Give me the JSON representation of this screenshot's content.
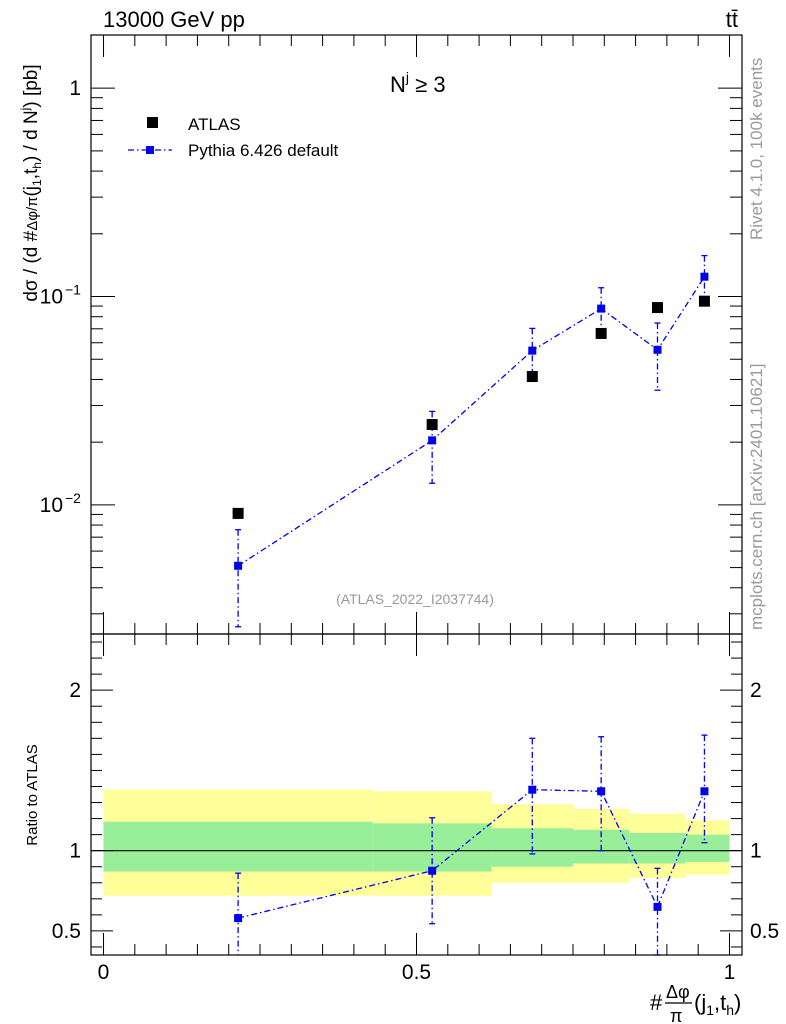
{
  "header": {
    "energy": "13000 GeV pp",
    "process": "tt̄"
  },
  "side": {
    "rivet": "Rivet 4.1.0,  100k events",
    "mcplots": "mcplots.cern.ch [arXiv:2401.10621]"
  },
  "colors": {
    "atlas": "#000000",
    "pythia": "#0000ee",
    "band_outer": "#ffff99",
    "band_inner": "#99ee99"
  },
  "chart_data": [
    {
      "type": "scatter",
      "title": "N^j ≥ 3",
      "analysis": "(ATLAS_2022_I2037744)",
      "ylabel": "dσ / (d #Δφ/π(j1,th) / d N^j) [pb]",
      "yscale": "log",
      "ylim": [
        0.0024,
        1.8
      ],
      "xlim": [
        -0.02,
        1.02
      ],
      "y_tick_labels": [
        "10^-2",
        "10^-1",
        "1"
      ],
      "legend": {
        "position": "top-left",
        "entries": [
          "ATLAS",
          "Pythia 6.426 default"
        ]
      },
      "series": [
        {
          "name": "ATLAS",
          "marker": "square",
          "x": [
            0.215,
            0.525,
            0.685,
            0.795,
            0.885,
            0.96
          ],
          "y": [
            0.0091,
            0.0243,
            0.0413,
            0.0665,
            0.0885,
            0.095
          ]
        },
        {
          "name": "Pythia 6.426 default",
          "marker": "square",
          "line": "dash-dot",
          "x": [
            0.215,
            0.525,
            0.685,
            0.795,
            0.885,
            0.96
          ],
          "y": [
            0.0051,
            0.0204,
            0.055,
            0.0875,
            0.0555,
            0.1245
          ],
          "y_err_low": [
            0.0025,
            0.0077,
            0.0117,
            0.0204,
            0.02,
            0.0311
          ],
          "y_err_high": [
            0.0025,
            0.0077,
            0.0153,
            0.0227,
            0.0191,
            0.0327
          ]
        }
      ]
    },
    {
      "type": "scatter",
      "title": "Ratio to ATLAS",
      "ylabel": "Ratio to ATLAS",
      "xlabel": "#Δφ/π(j1,th)",
      "ylim": [
        0.35,
        2.35
      ],
      "xlim": [
        -0.02,
        1.02
      ],
      "x_tick_labels": [
        "0",
        "0.5",
        "1"
      ],
      "y_tick_labels": [
        "0.5",
        "1",
        "2"
      ],
      "reference_line": 1,
      "bands": {
        "x_edges": [
          0,
          0.43,
          0.62,
          0.75,
          0.84,
          0.93,
          1.0
        ],
        "outer_low": [
          0.72,
          0.72,
          0.8,
          0.8,
          0.83,
          0.85
        ],
        "outer_high": [
          1.38,
          1.37,
          1.29,
          1.26,
          1.23,
          1.19
        ],
        "inner_low": [
          0.87,
          0.87,
          0.9,
          0.92,
          0.92,
          0.93
        ],
        "inner_high": [
          1.18,
          1.17,
          1.14,
          1.13,
          1.11,
          1.1
        ]
      },
      "series": [
        {
          "name": "Pythia 6.426 default",
          "marker": "square",
          "line": "dash-dot",
          "x": [
            0.215,
            0.525,
            0.685,
            0.795,
            0.885,
            0.96
          ],
          "y": [
            0.58,
            0.875,
            1.38,
            1.37,
            0.65,
            1.37
          ],
          "y_err_low": [
            0.28,
            0.33,
            0.4,
            0.37,
            0.3,
            0.32
          ],
          "y_err_high": [
            0.28,
            0.33,
            0.32,
            0.34,
            0.24,
            0.35
          ]
        }
      ]
    }
  ]
}
